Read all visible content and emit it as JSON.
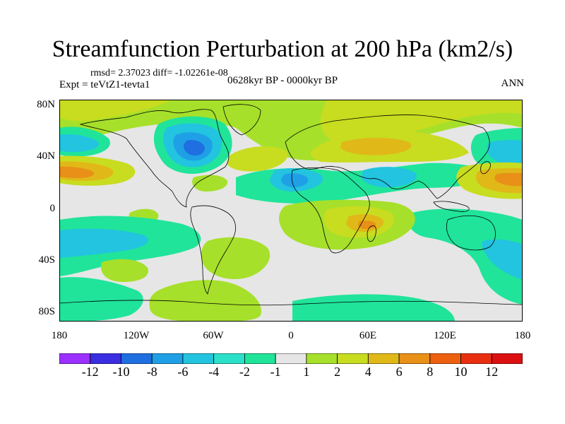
{
  "title": "Streamfunction Perturbation at 200 hPa (km2/s)",
  "rmsd_line": "rmsd= 2.37023 diff= -1.02261e-08",
  "experiment": "Expt = teVtZ1-tevta1",
  "period": "0628kyr BP - 0000kyr BP",
  "season": "ANN",
  "axes": {
    "lat_labels": [
      "80N",
      "40N",
      "0",
      "40S",
      "80S"
    ],
    "lon_labels": [
      "180",
      "120W",
      "60W",
      "0",
      "60E",
      "120E",
      "180"
    ]
  },
  "colorbar": {
    "labels": [
      "-12",
      "-10",
      "-8",
      "-6",
      "-4",
      "-2",
      "-1",
      "1",
      "2",
      "4",
      "6",
      "8",
      "10",
      "12"
    ],
    "colors": [
      "#9b30ff",
      "#3a2ee0",
      "#1f6fe0",
      "#1fa0e6",
      "#22c4e0",
      "#2ae0c8",
      "#20e49a",
      "#e6e6e6",
      "#a6e02a",
      "#c8dc20",
      "#e0b818",
      "#e89018",
      "#ec6010",
      "#e83010",
      "#dc1010"
    ]
  },
  "colors": {
    "background": "#e6e6e6",
    "coast": "#000000"
  }
}
